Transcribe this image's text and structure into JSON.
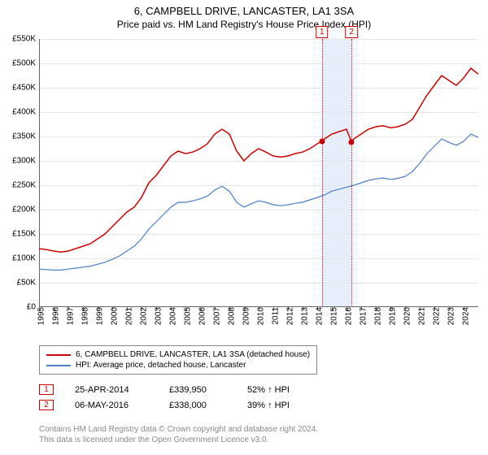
{
  "title": "6, CAMPBELL DRIVE, LANCASTER, LA1 3SA",
  "subtitle": "Price paid vs. HM Land Registry's House Price Index (HPI)",
  "chart": {
    "type": "line",
    "background_color": "#ffffff",
    "grid_color": "#e6e6e6",
    "axis_color": "#666666",
    "y": {
      "min": 0,
      "max": 550000,
      "tick_step": 50000,
      "ticks": [
        "£0",
        "£50K",
        "£100K",
        "£150K",
        "£200K",
        "£250K",
        "£300K",
        "£350K",
        "£400K",
        "£450K",
        "£500K",
        "£550K"
      ]
    },
    "x": {
      "min": 1995,
      "max": 2025,
      "tick_step": 1,
      "ticks": [
        "1995",
        "1996",
        "1997",
        "1998",
        "1999",
        "2000",
        "2001",
        "2002",
        "2003",
        "2004",
        "2005",
        "2006",
        "2007",
        "2008",
        "2009",
        "2010",
        "2011",
        "2012",
        "2013",
        "2014",
        "2015",
        "2016",
        "2017",
        "2018",
        "2019",
        "2020",
        "2021",
        "2022",
        "2023",
        "2024"
      ]
    },
    "series": [
      {
        "name": "6, CAMPBELL DRIVE, LANCASTER, LA1 3SA (detached house)",
        "color": "#cc0000",
        "line_width": 1.5,
        "points": [
          [
            1995.0,
            120000
          ],
          [
            1995.5,
            118000
          ],
          [
            1996.0,
            115000
          ],
          [
            1996.5,
            113000
          ],
          [
            1997.0,
            115000
          ],
          [
            1997.5,
            120000
          ],
          [
            1998.0,
            125000
          ],
          [
            1998.5,
            130000
          ],
          [
            1999.0,
            140000
          ],
          [
            1999.5,
            150000
          ],
          [
            2000.0,
            165000
          ],
          [
            2000.5,
            180000
          ],
          [
            2001.0,
            195000
          ],
          [
            2001.5,
            205000
          ],
          [
            2002.0,
            225000
          ],
          [
            2002.5,
            255000
          ],
          [
            2003.0,
            270000
          ],
          [
            2003.5,
            290000
          ],
          [
            2004.0,
            310000
          ],
          [
            2004.5,
            320000
          ],
          [
            2005.0,
            315000
          ],
          [
            2005.5,
            318000
          ],
          [
            2006.0,
            325000
          ],
          [
            2006.5,
            335000
          ],
          [
            2007.0,
            355000
          ],
          [
            2007.5,
            365000
          ],
          [
            2008.0,
            355000
          ],
          [
            2008.5,
            320000
          ],
          [
            2009.0,
            300000
          ],
          [
            2009.5,
            315000
          ],
          [
            2010.0,
            325000
          ],
          [
            2010.5,
            318000
          ],
          [
            2011.0,
            310000
          ],
          [
            2011.5,
            308000
          ],
          [
            2012.0,
            310000
          ],
          [
            2012.5,
            315000
          ],
          [
            2013.0,
            318000
          ],
          [
            2013.5,
            325000
          ],
          [
            2014.0,
            335000
          ],
          [
            2014.32,
            339950
          ],
          [
            2014.5,
            345000
          ],
          [
            2015.0,
            355000
          ],
          [
            2015.5,
            360000
          ],
          [
            2016.0,
            365000
          ],
          [
            2016.35,
            338000
          ],
          [
            2016.5,
            345000
          ],
          [
            2017.0,
            355000
          ],
          [
            2017.5,
            365000
          ],
          [
            2018.0,
            370000
          ],
          [
            2018.5,
            372000
          ],
          [
            2019.0,
            368000
          ],
          [
            2019.5,
            370000
          ],
          [
            2020.0,
            375000
          ],
          [
            2020.5,
            385000
          ],
          [
            2021.0,
            410000
          ],
          [
            2021.5,
            435000
          ],
          [
            2022.0,
            455000
          ],
          [
            2022.5,
            475000
          ],
          [
            2023.0,
            465000
          ],
          [
            2023.5,
            455000
          ],
          [
            2024.0,
            470000
          ],
          [
            2024.5,
            490000
          ],
          [
            2025.0,
            478000
          ]
        ]
      },
      {
        "name": "HPI: Average price, detached house, Lancaster",
        "color": "#4a7ec8",
        "line_width": 1.2,
        "points": [
          [
            1995.0,
            78000
          ],
          [
            1995.5,
            77000
          ],
          [
            1996.0,
            76000
          ],
          [
            1996.5,
            76000
          ],
          [
            1997.0,
            78000
          ],
          [
            1997.5,
            80000
          ],
          [
            1998.0,
            82000
          ],
          [
            1998.5,
            84000
          ],
          [
            1999.0,
            88000
          ],
          [
            1999.5,
            92000
          ],
          [
            2000.0,
            98000
          ],
          [
            2000.5,
            105000
          ],
          [
            2001.0,
            115000
          ],
          [
            2001.5,
            125000
          ],
          [
            2002.0,
            140000
          ],
          [
            2002.5,
            160000
          ],
          [
            2003.0,
            175000
          ],
          [
            2003.5,
            190000
          ],
          [
            2004.0,
            205000
          ],
          [
            2004.5,
            215000
          ],
          [
            2005.0,
            215000
          ],
          [
            2005.5,
            218000
          ],
          [
            2006.0,
            222000
          ],
          [
            2006.5,
            228000
          ],
          [
            2007.0,
            240000
          ],
          [
            2007.5,
            248000
          ],
          [
            2008.0,
            238000
          ],
          [
            2008.5,
            215000
          ],
          [
            2009.0,
            205000
          ],
          [
            2009.5,
            212000
          ],
          [
            2010.0,
            218000
          ],
          [
            2010.5,
            215000
          ],
          [
            2011.0,
            210000
          ],
          [
            2011.5,
            208000
          ],
          [
            2012.0,
            210000
          ],
          [
            2012.5,
            213000
          ],
          [
            2013.0,
            215000
          ],
          [
            2013.5,
            220000
          ],
          [
            2014.0,
            225000
          ],
          [
            2014.5,
            230000
          ],
          [
            2015.0,
            238000
          ],
          [
            2015.5,
            242000
          ],
          [
            2016.0,
            246000
          ],
          [
            2016.5,
            250000
          ],
          [
            2017.0,
            255000
          ],
          [
            2017.5,
            260000
          ],
          [
            2018.0,
            263000
          ],
          [
            2018.5,
            265000
          ],
          [
            2019.0,
            262000
          ],
          [
            2019.5,
            264000
          ],
          [
            2020.0,
            268000
          ],
          [
            2020.5,
            278000
          ],
          [
            2021.0,
            295000
          ],
          [
            2021.5,
            315000
          ],
          [
            2022.0,
            330000
          ],
          [
            2022.5,
            345000
          ],
          [
            2023.0,
            338000
          ],
          [
            2023.5,
            332000
          ],
          [
            2024.0,
            340000
          ],
          [
            2024.5,
            355000
          ],
          [
            2025.0,
            348000
          ]
        ]
      }
    ],
    "sale_markers": [
      {
        "label": "1",
        "date_x": 2014.32,
        "price": 339950,
        "color": "#cc0000"
      },
      {
        "label": "2",
        "date_x": 2016.35,
        "price": 338000,
        "color": "#cc0000"
      }
    ],
    "marker_band": {
      "from": 2014.32,
      "to": 2016.35,
      "color": "#e6eefc"
    }
  },
  "legend": {
    "items": [
      {
        "label": "6, CAMPBELL DRIVE, LANCASTER, LA1 3SA (detached house)",
        "color": "#cc0000"
      },
      {
        "label": "HPI: Average price, detached house, Lancaster",
        "color": "#4a7ec8"
      }
    ]
  },
  "sales": [
    {
      "num": "1",
      "date": "25-APR-2014",
      "price": "£339,950",
      "pct": "52% ↑ HPI",
      "color": "#cc0000"
    },
    {
      "num": "2",
      "date": "06-MAY-2016",
      "price": "£338,000",
      "pct": "39% ↑ HPI",
      "color": "#cc0000"
    }
  ],
  "footer": {
    "line1": "Contains HM Land Registry data © Crown copyright and database right 2024.",
    "line2": "This data is licensed under the Open Government Licence v3.0."
  }
}
